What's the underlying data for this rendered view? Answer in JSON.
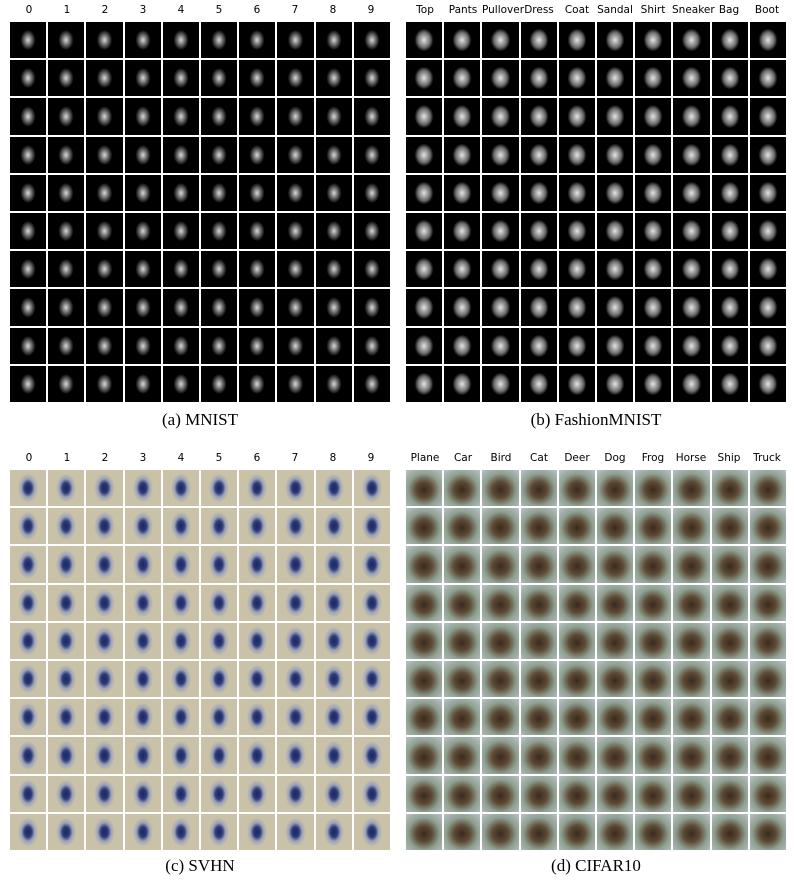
{
  "panels": [
    {
      "id": "mnist",
      "labels": [
        "0",
        "1",
        "2",
        "3",
        "4",
        "5",
        "6",
        "7",
        "8",
        "9"
      ],
      "caption": "(a) MNIST"
    },
    {
      "id": "fashion",
      "labels": [
        "Top",
        "Pants",
        "Pullover",
        "Dress",
        "Coat",
        "Sandal",
        "Shirt",
        "Sneaker",
        "Bag",
        "Boot"
      ],
      "caption": "(b) FashionMNIST"
    },
    {
      "id": "svhn",
      "labels": [
        "0",
        "1",
        "2",
        "3",
        "4",
        "5",
        "6",
        "7",
        "8",
        "9"
      ],
      "caption": "(c) SVHN"
    },
    {
      "id": "cifar",
      "labels": [
        "Plane",
        "Car",
        "Bird",
        "Cat",
        "Deer",
        "Dog",
        "Frog",
        "Horse",
        "Ship",
        "Truck"
      ],
      "caption": "(d) CIFAR10"
    }
  ]
}
